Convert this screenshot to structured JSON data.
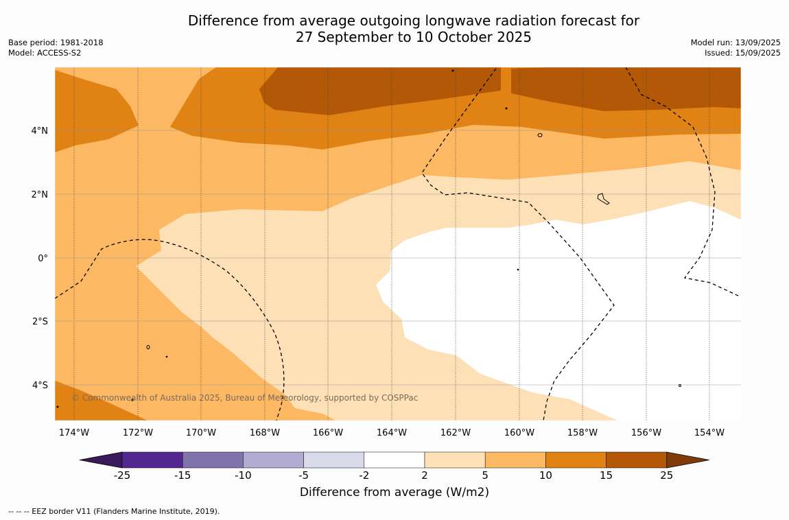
{
  "header": {
    "title_line1": "Difference from average outgoing longwave radiation forecast for",
    "title_line2": "27 September to 10 October 2025",
    "base_period": "Base period: 1981-2018",
    "model": "Model: ACCESS-S2",
    "model_run": "Model run: 13/09/2025",
    "issued": "Issued: 15/09/2025"
  },
  "map": {
    "x_ticks": [
      "174°W",
      "172°W",
      "170°W",
      "168°W",
      "166°W",
      "164°W",
      "162°W",
      "160°W",
      "158°W",
      "156°W",
      "154°W"
    ],
    "y_ticks": [
      "4°N",
      "2°N",
      "0°",
      "2°S",
      "4°S"
    ],
    "copyright": "© Commonwealth of Australia 2025, Bureau of Meteorology, supported by COSPPac"
  },
  "colorbar": {
    "labels": [
      "-25",
      "-15",
      "-10",
      "-5",
      "-2",
      "2",
      "5",
      "10",
      "15",
      "25"
    ],
    "colors": [
      "#3b1a59",
      "#54278f",
      "#8073ac",
      "#b2abd2",
      "#d8daeb",
      "#ffffff",
      "#fee0b6",
      "#fdb863",
      "#e08214",
      "#b35806",
      "#7f3b08"
    ],
    "title": "Difference from average (W/m2)"
  },
  "footer": {
    "legend_text": "--  --  -- EEZ border V11 (Flanders Marine Institute, 2019)."
  }
}
